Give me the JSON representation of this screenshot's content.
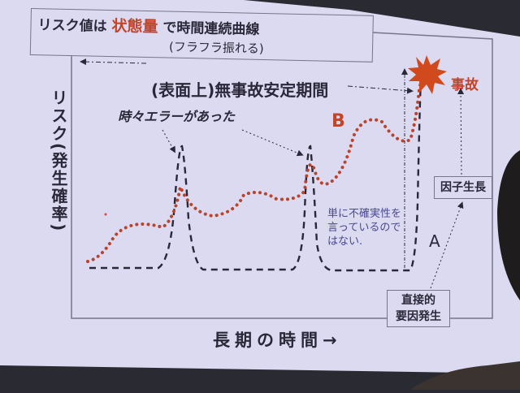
{
  "title": {
    "prefix": "リスク値は",
    "highlight": "状態量",
    "suffix": "で時間連続曲線",
    "note": "(フラフラ振れる)"
  },
  "period_label": "(表面上)無事故安定期間",
  "y_axis_label": "リスク(発生確率)",
  "x_axis_label": "長期の時間→",
  "error_note": "時々エラーがあった",
  "curve_b_label": "B",
  "curve_a_label": "A",
  "accident_label": "事故",
  "uncertainty_note": "単に不確実性を言っているのではない.",
  "factor_growth_box": "因子生長",
  "direct_cause_box": {
    "line1": "直接的",
    "line2": "要因発生"
  },
  "colors": {
    "slide_background": "#dcdaf0",
    "accent_red": "#c2452a",
    "curve_b": "#b8442e",
    "curve_a": "#2a2838",
    "note_blue": "#4a4890"
  }
}
